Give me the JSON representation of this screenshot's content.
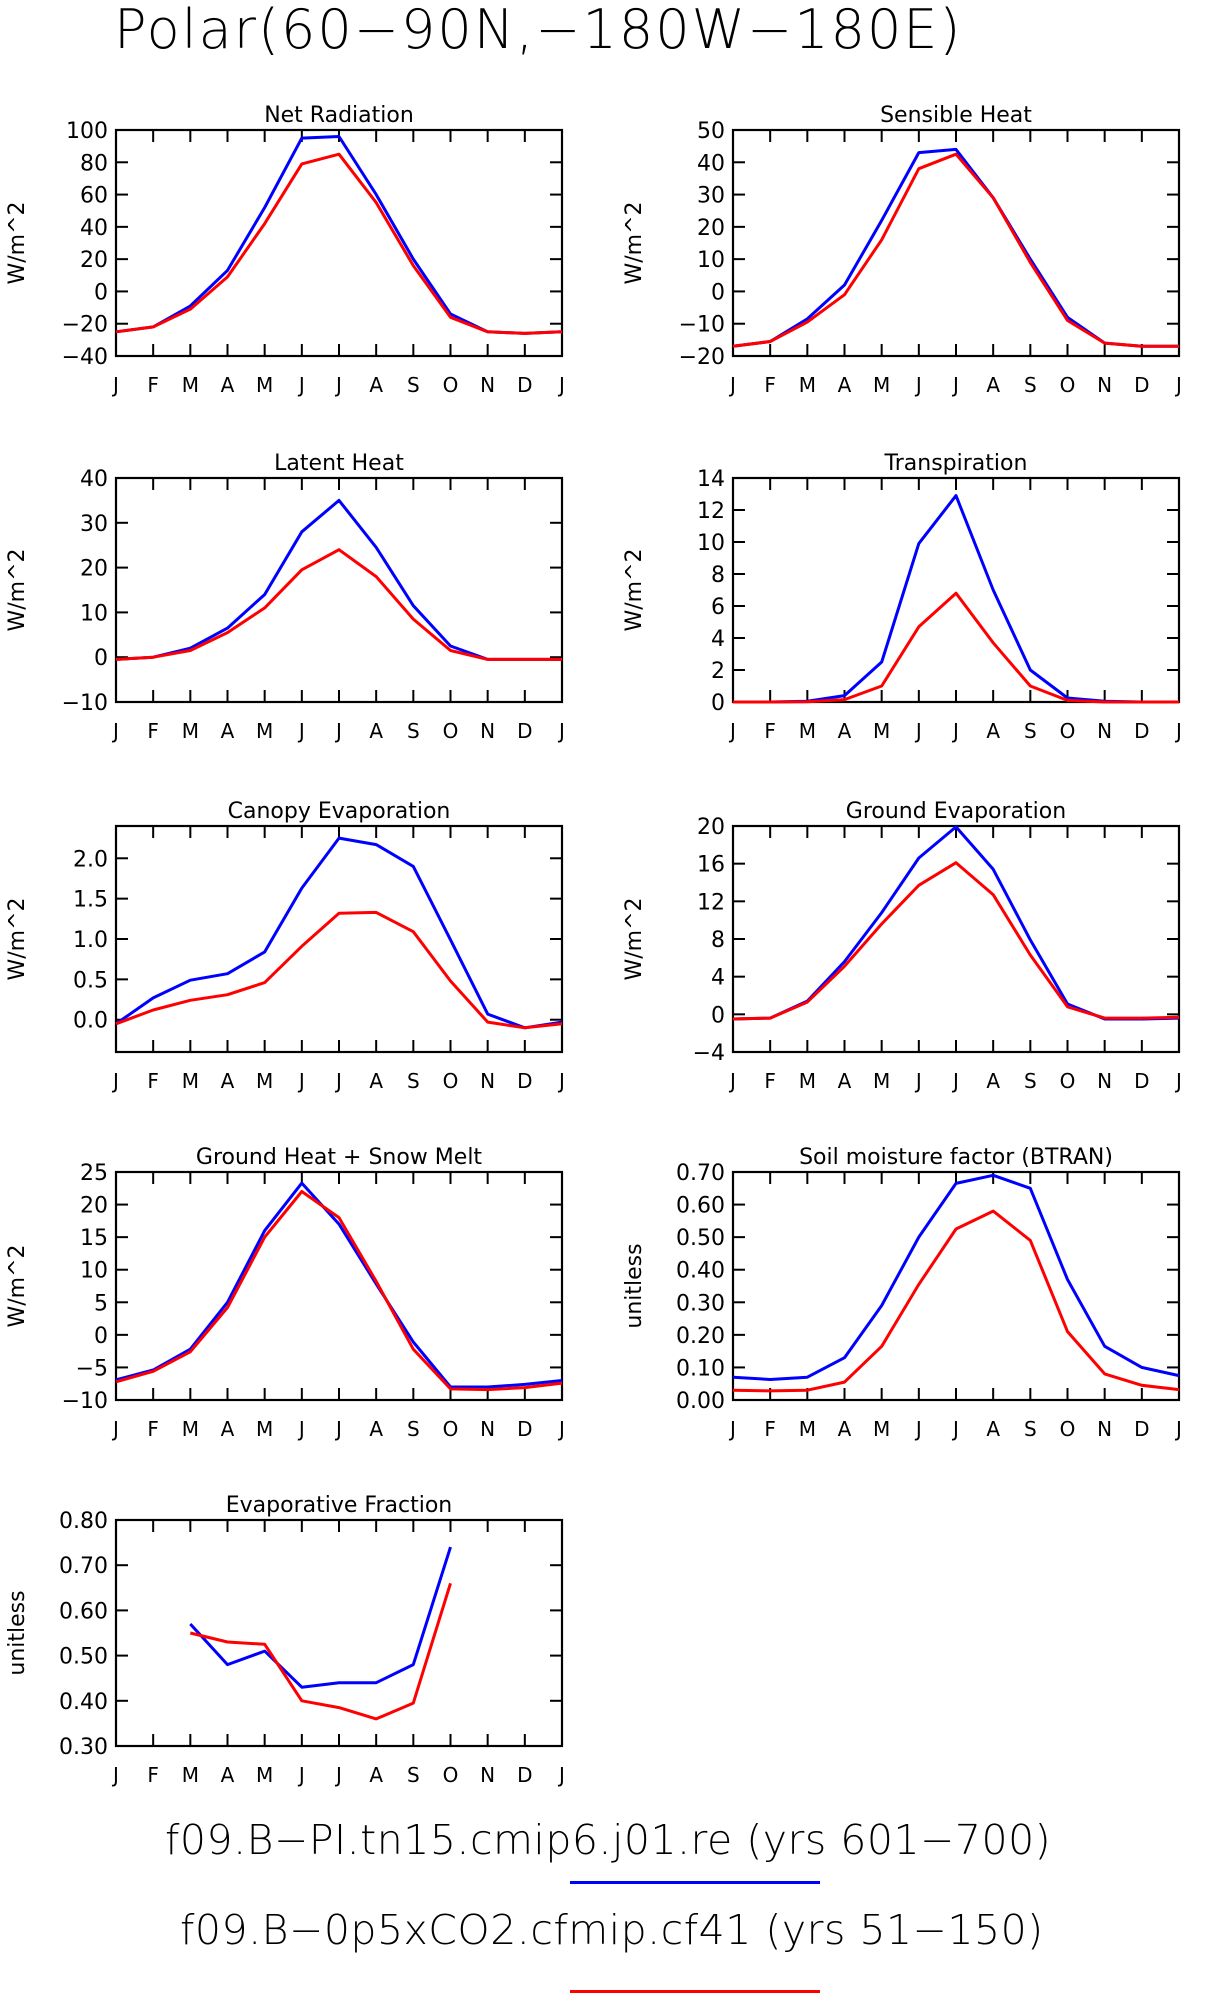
{
  "title": "Polar(60−90N,−180W−180E)",
  "month_labels": [
    "J",
    "F",
    "M",
    "A",
    "M",
    "J",
    "J",
    "A",
    "S",
    "O",
    "N",
    "D",
    "J"
  ],
  "colors": {
    "run1": "#0000ff",
    "run2": "#ff0000"
  },
  "legend": [
    {
      "label": "f09.B−PI.tn15.cmip6.j01.re (yrs 601−700)",
      "color": "#0000ff"
    },
    {
      "label": "f09.B−0p5xCO2.cfmip.cf41 (yrs 51−150)",
      "color": "#ff0000"
    }
  ],
  "chart_data": [
    {
      "type": "line",
      "title": "Net Radiation",
      "ylabel": "W/m^2",
      "ylim": [
        -40,
        100
      ],
      "yticks": [
        "−40",
        "−20",
        "0",
        "20",
        "40",
        "60",
        "80",
        "100"
      ],
      "x": [
        "J",
        "F",
        "M",
        "A",
        "M",
        "J",
        "J",
        "A",
        "S",
        "O",
        "N",
        "D",
        "J"
      ],
      "series": [
        {
          "values": [
            -25,
            -22,
            -9,
            13,
            52,
            95,
            96,
            60,
            20,
            -14,
            -25,
            -26,
            -25
          ]
        },
        {
          "values": [
            -25,
            -22,
            -11,
            9,
            42,
            79,
            85,
            55,
            16,
            -16,
            -25,
            -26,
            -25
          ]
        }
      ]
    },
    {
      "type": "line",
      "title": "Sensible Heat",
      "ylabel": "W/m^2",
      "ylim": [
        -20,
        50
      ],
      "yticks": [
        "−20",
        "−10",
        "0",
        "10",
        "20",
        "30",
        "40",
        "50"
      ],
      "x": [
        "J",
        "F",
        "M",
        "A",
        "M",
        "J",
        "J",
        "A",
        "S",
        "O",
        "N",
        "D",
        "J"
      ],
      "series": [
        {
          "values": [
            -17,
            -15.5,
            -8.5,
            2,
            22,
            43,
            44,
            29,
            10,
            -8,
            -16,
            -17,
            -17
          ]
        },
        {
          "values": [
            -17,
            -15.5,
            -9.5,
            -1,
            16,
            38,
            42.5,
            29,
            9,
            -9,
            -16,
            -17,
            -17
          ]
        }
      ]
    },
    {
      "type": "line",
      "title": "Latent Heat",
      "ylabel": "W/m^2",
      "ylim": [
        -10,
        40
      ],
      "yticks": [
        "−10",
        "0",
        "10",
        "20",
        "30",
        "40"
      ],
      "x": [
        "J",
        "F",
        "M",
        "A",
        "M",
        "J",
        "J",
        "A",
        "S",
        "O",
        "N",
        "D",
        "J"
      ],
      "series": [
        {
          "values": [
            -0.5,
            0,
            2,
            6.5,
            14,
            28,
            35,
            24.5,
            11.5,
            2.5,
            -0.5,
            -0.5,
            -0.5
          ]
        },
        {
          "values": [
            -0.5,
            0,
            1.5,
            5.5,
            11,
            19.5,
            24,
            18,
            8.5,
            1.5,
            -0.5,
            -0.5,
            -0.5
          ]
        }
      ]
    },
    {
      "type": "line",
      "title": "Transpiration",
      "ylabel": "W/m^2",
      "ylim": [
        0,
        14
      ],
      "yticks": [
        "0",
        "2",
        "4",
        "6",
        "8",
        "10",
        "12",
        "14"
      ],
      "x": [
        "J",
        "F",
        "M",
        "A",
        "M",
        "J",
        "J",
        "A",
        "S",
        "O",
        "N",
        "D",
        "J"
      ],
      "series": [
        {
          "values": [
            0,
            0,
            0.05,
            0.4,
            2.5,
            9.9,
            12.9,
            7,
            2,
            0.25,
            0.05,
            0,
            0
          ]
        },
        {
          "values": [
            0,
            0,
            0.02,
            0.15,
            1,
            4.7,
            6.8,
            3.7,
            1,
            0.1,
            0,
            0,
            0
          ]
        }
      ]
    },
    {
      "type": "line",
      "title": "Canopy Evaporation",
      "ylabel": "W/m^2",
      "ylim": [
        -0.4,
        2.4
      ],
      "yticks": [
        "0.0",
        "0.5",
        "1.0",
        "1.5",
        "2.0"
      ],
      "ytick_values": [
        0,
        0.5,
        1,
        1.5,
        2
      ],
      "x": [
        "J",
        "F",
        "M",
        "A",
        "M",
        "J",
        "J",
        "A",
        "S",
        "O",
        "N",
        "D",
        "J"
      ],
      "series": [
        {
          "values": [
            -0.05,
            0.27,
            0.49,
            0.57,
            0.84,
            1.63,
            2.25,
            2.17,
            1.9,
            0.99,
            0.07,
            -0.1,
            -0.03
          ]
        },
        {
          "values": [
            -0.05,
            0.12,
            0.24,
            0.31,
            0.46,
            0.91,
            1.32,
            1.33,
            1.09,
            0.48,
            -0.03,
            -0.1,
            -0.05
          ]
        }
      ]
    },
    {
      "type": "line",
      "title": "Ground Evaporation",
      "ylabel": "W/m^2",
      "ylim": [
        -4,
        20
      ],
      "yticks": [
        "−4",
        "0",
        "4",
        "8",
        "12",
        "16",
        "20"
      ],
      "x": [
        "J",
        "F",
        "M",
        "A",
        "M",
        "J",
        "J",
        "A",
        "S",
        "O",
        "N",
        "D",
        "J"
      ],
      "series": [
        {
          "values": [
            -0.5,
            -0.4,
            1.4,
            5.6,
            10.8,
            16.6,
            19.9,
            15.4,
            7.9,
            1.1,
            -0.5,
            -0.5,
            -0.4
          ]
        },
        {
          "values": [
            -0.5,
            -0.4,
            1.3,
            5.1,
            9.6,
            13.7,
            16.1,
            12.7,
            6.3,
            0.8,
            -0.4,
            -0.4,
            -0.3
          ]
        }
      ]
    },
    {
      "type": "line",
      "title": "Ground Heat + Snow Melt",
      "ylabel": "W/m^2",
      "ylim": [
        -10,
        25
      ],
      "yticks": [
        "−10",
        "−5",
        "0",
        "5",
        "10",
        "15",
        "20",
        "25"
      ],
      "x": [
        "J",
        "F",
        "M",
        "A",
        "M",
        "J",
        "J",
        "A",
        "S",
        "O",
        "N",
        "D",
        "J"
      ],
      "series": [
        {
          "values": [
            -6.9,
            -5.4,
            -2.2,
            5,
            16,
            23.3,
            17,
            7.8,
            -1.1,
            -8,
            -8,
            -7.6,
            -7
          ]
        },
        {
          "values": [
            -7.2,
            -5.6,
            -2.6,
            4.2,
            15,
            22,
            18,
            8.2,
            -2.2,
            -8.3,
            -8.4,
            -8.1,
            -7.4
          ]
        }
      ]
    },
    {
      "type": "line",
      "title": "Soil moisture factor (BTRAN)",
      "ylabel": "unitless",
      "ylim": [
        0,
        0.7
      ],
      "yticks": [
        "0.00",
        "0.10",
        "0.20",
        "0.30",
        "0.40",
        "0.50",
        "0.60",
        "0.70"
      ],
      "x": [
        "J",
        "F",
        "M",
        "A",
        "M",
        "J",
        "J",
        "A",
        "S",
        "O",
        "N",
        "D",
        "J"
      ],
      "series": [
        {
          "values": [
            0.07,
            0.063,
            0.07,
            0.13,
            0.29,
            0.5,
            0.665,
            0.69,
            0.65,
            0.37,
            0.165,
            0.1,
            0.075
          ]
        },
        {
          "values": [
            0.03,
            0.028,
            0.03,
            0.055,
            0.165,
            0.355,
            0.525,
            0.58,
            0.49,
            0.21,
            0.08,
            0.045,
            0.032
          ]
        }
      ]
    },
    {
      "type": "line",
      "title": "Evaporative Fraction",
      "ylabel": "unitless",
      "ylim": [
        0.3,
        0.8
      ],
      "yticks": [
        "0.30",
        "0.40",
        "0.50",
        "0.60",
        "0.70",
        "0.80"
      ],
      "x": [
        "J",
        "F",
        "M",
        "A",
        "M",
        "J",
        "J",
        "A",
        "S",
        "O",
        "N",
        "D",
        "J"
      ],
      "series": [
        {
          "values": [
            null,
            null,
            0.57,
            0.48,
            0.51,
            0.43,
            0.44,
            0.44,
            0.48,
            0.74,
            null,
            null,
            null
          ]
        },
        {
          "values": [
            null,
            null,
            0.55,
            0.53,
            0.525,
            0.4,
            0.385,
            0.36,
            0.395,
            0.66,
            null,
            null,
            null
          ]
        }
      ]
    }
  ]
}
